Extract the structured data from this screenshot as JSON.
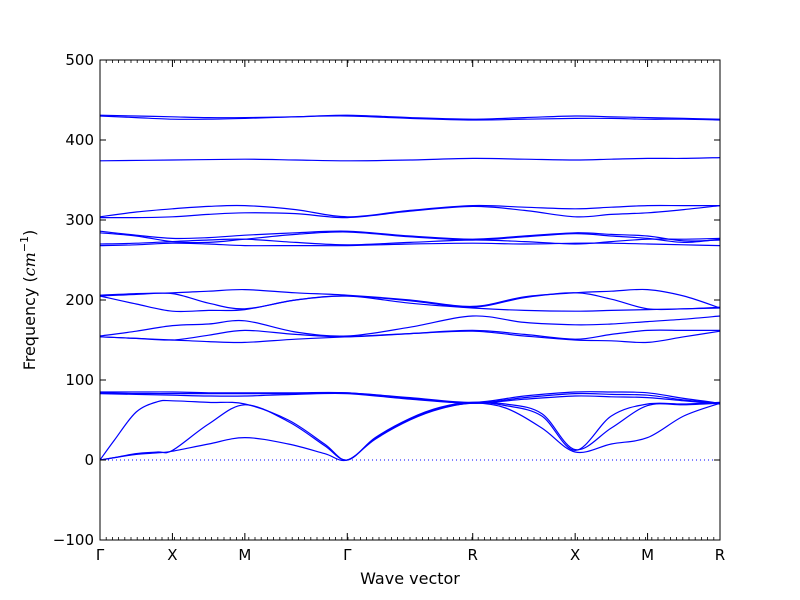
{
  "chart_data": {
    "type": "line",
    "title": "",
    "xlabel": "Wave vector",
    "ylabel": "Frequency (cm^-1)",
    "ylabel_parts": {
      "main": "Frequency (",
      "unit": "cm",
      "exp": "−1",
      "close": ")"
    },
    "ylim": [
      -100,
      500
    ],
    "yticks": [
      -100,
      0,
      100,
      200,
      300,
      400,
      500
    ],
    "x_path": [
      "Γ",
      "X",
      "M",
      "Γ",
      "R",
      "X",
      "M",
      "R"
    ],
    "x_path_positions": [
      0,
      0.5,
      1.0,
      1.7071,
      2.5731,
      3.2802,
      3.7802,
      4.2802
    ],
    "zero_line": true,
    "line_color": "#0000ff",
    "series": [
      {
        "x": [
          0,
          0.25,
          0.5,
          0.75,
          1.0,
          1.35,
          1.7071,
          2.14,
          2.5731,
          2.93,
          3.2802,
          3.53,
          3.7802,
          4.03,
          4.2802
        ],
        "values": [
          431,
          430,
          429,
          428,
          428,
          429,
          431,
          428,
          426,
          428,
          430,
          429,
          428,
          427,
          426
        ]
      },
      {
        "x": [
          0,
          0.25,
          0.5,
          0.75,
          1.0,
          1.35,
          1.7071,
          2.14,
          2.5731,
          2.93,
          3.2802,
          3.53,
          3.7802,
          4.03,
          4.2802
        ],
        "values": [
          430,
          428,
          426,
          426,
          427,
          429,
          430,
          427,
          425,
          426,
          427,
          427,
          426,
          426,
          425
        ]
      },
      {
        "x": [
          0,
          0.5,
          1.0,
          1.35,
          1.7071,
          2.14,
          2.5731,
          2.93,
          3.2802,
          3.53,
          3.7802,
          4.03,
          4.2802
        ],
        "values": [
          374,
          375,
          376,
          375,
          374,
          375,
          377,
          376,
          375,
          376,
          377,
          377,
          378
        ]
      },
      {
        "x": [
          0,
          0.25,
          0.5,
          0.75,
          1.0,
          1.35,
          1.7071,
          2.14,
          2.5731,
          2.93,
          3.2802,
          3.53,
          3.7802,
          4.03,
          4.2802
        ],
        "values": [
          304,
          310,
          314,
          317,
          318,
          313,
          304,
          312,
          318,
          316,
          314,
          316,
          318,
          318,
          318
        ]
      },
      {
        "x": [
          0,
          0.25,
          0.5,
          0.75,
          1.0,
          1.35,
          1.7071,
          2.14,
          2.5731,
          2.93,
          3.2802,
          3.53,
          3.7802,
          4.03,
          4.2802
        ],
        "values": [
          303,
          303,
          304,
          307,
          309,
          308,
          303,
          311,
          317,
          312,
          304,
          307,
          309,
          313,
          318
        ]
      },
      {
        "x": [
          0,
          0.25,
          0.5,
          0.75,
          1.0,
          1.35,
          1.7071,
          2.14,
          2.5731,
          2.93,
          3.2802,
          3.53,
          3.7802,
          4.03,
          4.2802
        ],
        "values": [
          286,
          281,
          277,
          278,
          281,
          284,
          286,
          280,
          276,
          280,
          284,
          282,
          280,
          274,
          275
        ]
      },
      {
        "x": [
          0,
          0.25,
          0.5,
          0.75,
          1.0,
          1.35,
          1.7071,
          2.14,
          2.5731,
          2.93,
          3.2802,
          3.53,
          3.7802,
          4.03,
          4.2802
        ],
        "values": [
          284,
          280,
          273,
          272,
          276,
          282,
          285,
          279,
          275,
          279,
          283,
          280,
          277,
          272,
          276
        ]
      },
      {
        "x": [
          0,
          0.25,
          0.5,
          0.75,
          1.0,
          1.35,
          1.7071,
          2.14,
          2.5731,
          2.93,
          3.2802,
          3.53,
          3.7802,
          4.03,
          4.2802
        ],
        "values": [
          270,
          271,
          273,
          275,
          276,
          272,
          269,
          272,
          275,
          273,
          270,
          273,
          276,
          276,
          277
        ]
      },
      {
        "x": [
          0,
          0.25,
          0.5,
          0.75,
          1.0,
          1.35,
          1.7071,
          2.14,
          2.5731,
          2.93,
          3.2802,
          3.53,
          3.7802,
          4.03,
          4.2802
        ],
        "values": [
          268,
          269,
          271,
          270,
          268,
          268,
          268,
          270,
          271,
          270,
          271,
          271,
          270,
          269,
          268
        ]
      },
      {
        "x": [
          0,
          0.25,
          0.5,
          0.75,
          1.0,
          1.35,
          1.7071,
          2.14,
          2.5731,
          2.93,
          3.2802,
          3.53,
          3.7802,
          4.03,
          4.2802
        ],
        "values": [
          206,
          208,
          209,
          211,
          213,
          209,
          206,
          200,
          192,
          204,
          209,
          211,
          213,
          205,
          190
        ]
      },
      {
        "x": [
          0,
          0.25,
          0.5,
          0.75,
          1.0,
          1.35,
          1.7071,
          2.14,
          2.5731,
          2.93,
          3.2802,
          3.53,
          3.7802,
          4.03,
          4.2802
        ],
        "values": [
          205,
          207,
          208,
          196,
          189,
          200,
          205,
          199,
          191,
          203,
          209,
          201,
          189,
          189,
          191
        ]
      },
      {
        "x": [
          0,
          0.25,
          0.5,
          0.75,
          1.0,
          1.35,
          1.7071,
          2.14,
          2.5731,
          2.93,
          3.2802,
          3.53,
          3.7802,
          4.03,
          4.2802
        ],
        "values": [
          205,
          195,
          186,
          187,
          188,
          200,
          205,
          196,
          190,
          187,
          186,
          187,
          188,
          189,
          190
        ]
      },
      {
        "x": [
          0,
          0.25,
          0.5,
          0.75,
          1.0,
          1.35,
          1.7071,
          2.14,
          2.5731,
          2.93,
          3.2802,
          3.53,
          3.7802,
          4.03,
          4.2802
        ],
        "values": [
          155,
          161,
          168,
          170,
          174,
          160,
          155,
          166,
          180,
          172,
          169,
          170,
          173,
          176,
          180
        ]
      },
      {
        "x": [
          0,
          0.25,
          0.5,
          0.75,
          1.0,
          1.35,
          1.7071,
          2.14,
          2.5731,
          2.93,
          3.2802,
          3.53,
          3.7802,
          4.03,
          4.2802
        ],
        "values": [
          154,
          152,
          150,
          156,
          162,
          157,
          154,
          158,
          162,
          157,
          151,
          157,
          162,
          162,
          162
        ]
      },
      {
        "x": [
          0,
          0.25,
          0.5,
          0.75,
          1.0,
          1.35,
          1.7071,
          2.14,
          2.5731,
          2.93,
          3.2802,
          3.53,
          3.7802,
          4.03,
          4.2802
        ],
        "values": [
          154,
          152,
          150,
          148,
          147,
          151,
          154,
          158,
          161,
          155,
          150,
          149,
          147,
          154,
          161
        ]
      },
      {
        "x": [
          0,
          0.25,
          0.5,
          0.75,
          1.0,
          1.35,
          1.7071,
          2.14,
          2.5731,
          2.93,
          3.2802,
          3.53,
          3.7802,
          4.03,
          4.2802
        ],
        "values": [
          85,
          85,
          85,
          84,
          84,
          84,
          84,
          78,
          72,
          80,
          85,
          85,
          84,
          77,
          71
        ]
      },
      {
        "x": [
          0,
          0.25,
          0.5,
          0.75,
          1.0,
          1.35,
          1.7071,
          2.14,
          2.5731,
          2.93,
          3.2802,
          3.53,
          3.7802,
          4.03,
          4.2802
        ],
        "values": [
          84,
          83,
          83,
          83,
          83,
          83,
          84,
          77,
          71,
          78,
          83,
          82,
          81,
          75,
          71
        ]
      },
      {
        "x": [
          0,
          0.25,
          0.5,
          0.75,
          1.0,
          1.35,
          1.7071,
          2.14,
          2.5731,
          2.93,
          3.2802,
          3.53,
          3.7802,
          4.03,
          4.2802
        ],
        "values": [
          83,
          82,
          81,
          80,
          80,
          82,
          83,
          76,
          71,
          76,
          80,
          79,
          78,
          74,
          70
        ]
      },
      {
        "x": [
          0,
          0.1,
          0.25,
          0.4,
          0.5,
          0.75,
          1.0,
          1.3,
          1.55,
          1.7071,
          1.9,
          2.14,
          2.35,
          2.5731,
          2.8,
          3.05,
          3.2802,
          3.53,
          3.7802,
          4.03,
          4.2802
        ],
        "values": [
          0,
          25,
          60,
          73,
          74,
          72,
          70,
          50,
          20,
          0,
          28,
          52,
          66,
          72,
          68,
          55,
          12,
          55,
          70,
          70,
          72
        ]
      },
      {
        "x": [
          0,
          0.1,
          0.25,
          0.4,
          0.5,
          0.75,
          1.0,
          1.3,
          1.55,
          1.7071,
          1.9,
          2.14,
          2.35,
          2.5731,
          2.8,
          3.05,
          3.2802,
          3.53,
          3.7802,
          4.03,
          4.2802
        ],
        "values": [
          0,
          3,
          8,
          10,
          12,
          45,
          69,
          48,
          18,
          0,
          27,
          51,
          65,
          71,
          70,
          58,
          13,
          40,
          68,
          69,
          71
        ]
      },
      {
        "x": [
          0,
          0.1,
          0.25,
          0.4,
          0.5,
          0.75,
          1.0,
          1.3,
          1.55,
          1.7071,
          1.9,
          2.14,
          2.35,
          2.5731,
          2.8,
          3.05,
          3.2802,
          3.53,
          3.7802,
          4.03,
          4.2802
        ],
        "values": [
          0,
          3,
          7,
          9,
          11,
          20,
          28,
          20,
          8,
          0,
          26,
          50,
          64,
          71,
          65,
          40,
          10,
          20,
          28,
          55,
          71
        ]
      }
    ]
  }
}
